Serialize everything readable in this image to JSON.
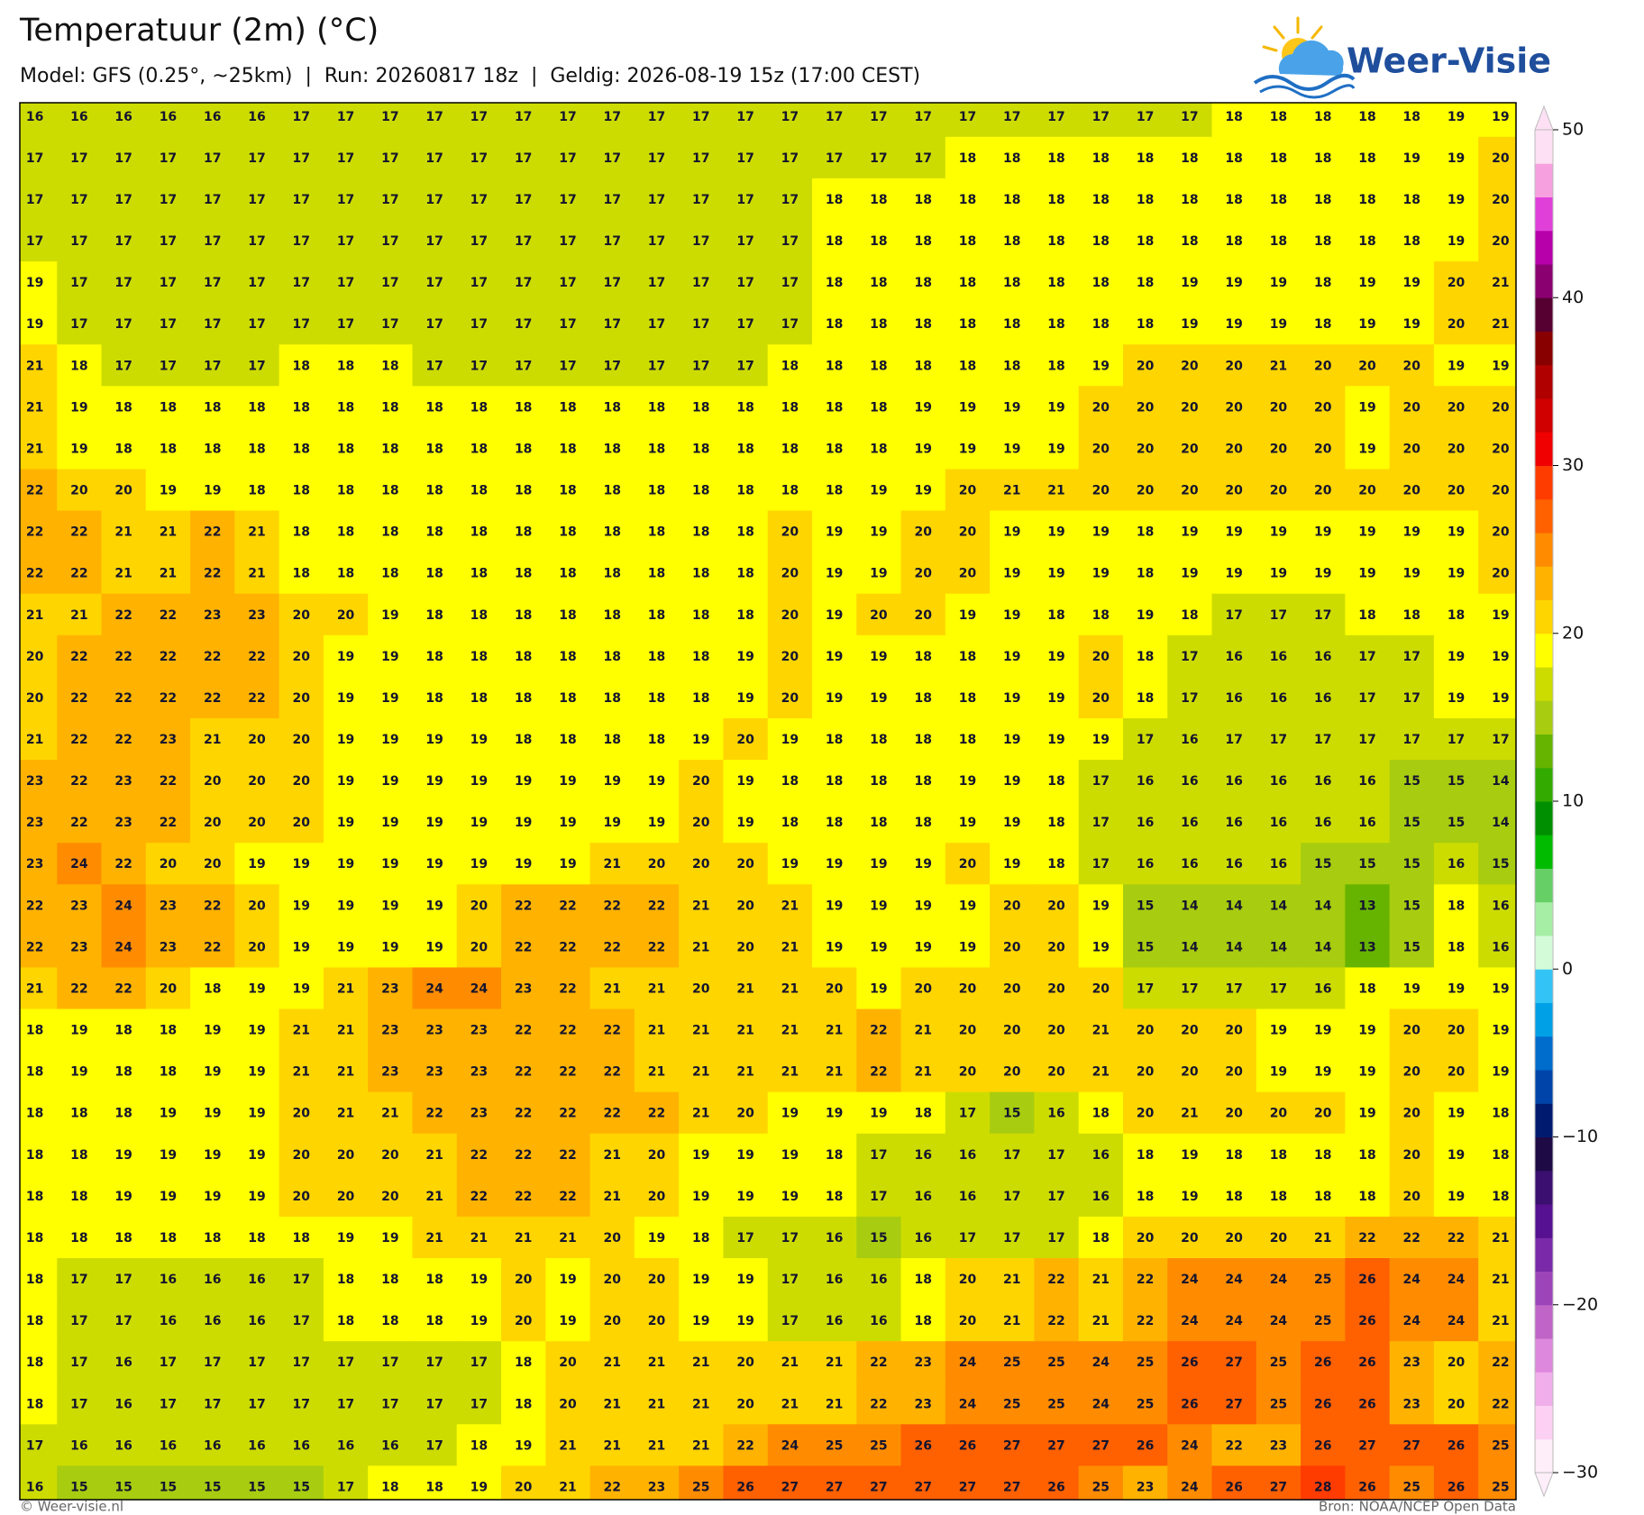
{
  "header": {
    "title": "Temperatuur (2m) (°C)",
    "subtitle": "Model: GFS (0.25°, ~25km)  |  Run: 20260817 18z  |  Geldig: 2026-08-19 15z (17:00 CEST)"
  },
  "logo": {
    "text": "Weer-Visie"
  },
  "map": {
    "grid": [
      [
        16,
        16,
        16,
        16,
        16,
        16,
        17,
        17,
        17,
        17,
        17,
        17,
        17,
        17,
        17,
        17,
        17,
        17,
        17,
        17,
        17,
        17,
        17,
        17,
        17,
        17,
        17,
        18,
        18,
        18,
        18,
        18,
        19,
        19
      ],
      [
        17,
        17,
        17,
        17,
        17,
        17,
        17,
        17,
        17,
        17,
        17,
        17,
        17,
        17,
        17,
        17,
        17,
        17,
        17,
        17,
        17,
        18,
        18,
        18,
        18,
        18,
        18,
        18,
        18,
        18,
        18,
        19,
        19,
        20
      ],
      [
        17,
        17,
        17,
        17,
        17,
        17,
        17,
        17,
        17,
        17,
        17,
        17,
        17,
        17,
        17,
        17,
        17,
        17,
        18,
        18,
        18,
        18,
        18,
        18,
        18,
        18,
        18,
        18,
        18,
        18,
        18,
        18,
        19,
        20
      ],
      [
        17,
        17,
        17,
        17,
        17,
        17,
        17,
        17,
        17,
        17,
        17,
        17,
        17,
        17,
        17,
        17,
        17,
        17,
        18,
        18,
        18,
        18,
        18,
        18,
        18,
        18,
        18,
        18,
        18,
        18,
        18,
        18,
        19,
        20
      ],
      [
        19,
        17,
        17,
        17,
        17,
        17,
        17,
        17,
        17,
        17,
        17,
        17,
        17,
        17,
        17,
        17,
        17,
        17,
        18,
        18,
        18,
        18,
        18,
        18,
        18,
        18,
        19,
        19,
        19,
        18,
        19,
        19,
        20,
        21
      ],
      [
        19,
        17,
        17,
        17,
        17,
        17,
        17,
        17,
        17,
        17,
        17,
        17,
        17,
        17,
        17,
        17,
        17,
        17,
        18,
        18,
        18,
        18,
        18,
        18,
        18,
        18,
        19,
        19,
        19,
        18,
        19,
        19,
        20,
        21
      ],
      [
        21,
        18,
        17,
        17,
        17,
        17,
        18,
        18,
        18,
        17,
        17,
        17,
        17,
        17,
        17,
        17,
        17,
        18,
        18,
        18,
        18,
        18,
        18,
        18,
        19,
        20,
        20,
        20,
        21,
        20,
        20,
        20,
        19,
        19
      ],
      [
        21,
        19,
        18,
        18,
        18,
        18,
        18,
        18,
        18,
        18,
        18,
        18,
        18,
        18,
        18,
        18,
        18,
        18,
        18,
        18,
        19,
        19,
        19,
        19,
        20,
        20,
        20,
        20,
        20,
        20,
        19,
        20,
        20,
        20
      ],
      [
        21,
        19,
        18,
        18,
        18,
        18,
        18,
        18,
        18,
        18,
        18,
        18,
        18,
        18,
        18,
        18,
        18,
        18,
        18,
        18,
        19,
        19,
        19,
        19,
        20,
        20,
        20,
        20,
        20,
        20,
        19,
        20,
        20,
        20
      ],
      [
        22,
        20,
        20,
        19,
        19,
        18,
        18,
        18,
        18,
        18,
        18,
        18,
        18,
        18,
        18,
        18,
        18,
        18,
        18,
        19,
        19,
        20,
        21,
        21,
        20,
        20,
        20,
        20,
        20,
        20,
        20,
        20,
        20,
        20
      ],
      [
        22,
        22,
        21,
        21,
        22,
        21,
        18,
        18,
        18,
        18,
        18,
        18,
        18,
        18,
        18,
        18,
        18,
        20,
        19,
        19,
        20,
        20,
        19,
        19,
        19,
        18,
        19,
        19,
        19,
        19,
        19,
        19,
        19,
        20
      ],
      [
        22,
        22,
        21,
        21,
        22,
        21,
        18,
        18,
        18,
        18,
        18,
        18,
        18,
        18,
        18,
        18,
        18,
        20,
        19,
        19,
        20,
        20,
        19,
        19,
        19,
        18,
        19,
        19,
        19,
        19,
        19,
        19,
        19,
        20
      ],
      [
        21,
        21,
        22,
        22,
        23,
        23,
        20,
        20,
        19,
        18,
        18,
        18,
        18,
        18,
        18,
        18,
        18,
        20,
        19,
        20,
        20,
        19,
        19,
        18,
        18,
        19,
        18,
        17,
        17,
        17,
        18,
        18,
        18,
        19
      ],
      [
        20,
        22,
        22,
        22,
        22,
        22,
        20,
        19,
        19,
        18,
        18,
        18,
        18,
        18,
        18,
        18,
        19,
        20,
        19,
        19,
        18,
        18,
        19,
        19,
        20,
        18,
        17,
        16,
        16,
        16,
        17,
        17,
        19,
        19
      ],
      [
        20,
        22,
        22,
        22,
        22,
        22,
        20,
        19,
        19,
        18,
        18,
        18,
        18,
        18,
        18,
        18,
        19,
        20,
        19,
        19,
        18,
        18,
        19,
        19,
        20,
        18,
        17,
        16,
        16,
        16,
        17,
        17,
        19,
        19
      ],
      [
        21,
        22,
        22,
        23,
        21,
        20,
        20,
        19,
        19,
        19,
        19,
        18,
        18,
        18,
        18,
        19,
        20,
        19,
        18,
        18,
        18,
        18,
        19,
        19,
        19,
        17,
        16,
        17,
        17,
        17,
        17,
        17,
        17,
        17
      ],
      [
        23,
        22,
        23,
        22,
        20,
        20,
        20,
        19,
        19,
        19,
        19,
        19,
        19,
        19,
        19,
        20,
        19,
        18,
        18,
        18,
        18,
        19,
        19,
        18,
        17,
        16,
        16,
        16,
        16,
        16,
        16,
        15,
        15,
        14
      ],
      [
        23,
        22,
        23,
        22,
        20,
        20,
        20,
        19,
        19,
        19,
        19,
        19,
        19,
        19,
        19,
        20,
        19,
        18,
        18,
        18,
        18,
        19,
        19,
        18,
        17,
        16,
        16,
        16,
        16,
        16,
        16,
        15,
        15,
        14
      ],
      [
        23,
        24,
        22,
        20,
        20,
        19,
        19,
        19,
        19,
        19,
        19,
        19,
        19,
        21,
        20,
        20,
        20,
        19,
        19,
        19,
        19,
        20,
        19,
        18,
        17,
        16,
        16,
        16,
        16,
        15,
        15,
        15,
        16,
        15
      ],
      [
        22,
        23,
        24,
        23,
        22,
        20,
        19,
        19,
        19,
        19,
        20,
        22,
        22,
        22,
        22,
        21,
        20,
        21,
        19,
        19,
        19,
        19,
        20,
        20,
        19,
        15,
        14,
        14,
        14,
        14,
        13,
        15,
        18,
        16
      ],
      [
        22,
        23,
        24,
        23,
        22,
        20,
        19,
        19,
        19,
        19,
        20,
        22,
        22,
        22,
        22,
        21,
        20,
        21,
        19,
        19,
        19,
        19,
        20,
        20,
        19,
        15,
        14,
        14,
        14,
        14,
        13,
        15,
        18,
        16
      ],
      [
        21,
        22,
        22,
        20,
        18,
        19,
        19,
        21,
        23,
        24,
        24,
        23,
        22,
        21,
        21,
        20,
        21,
        21,
        20,
        19,
        20,
        20,
        20,
        20,
        20,
        17,
        17,
        17,
        17,
        16,
        18,
        19,
        19,
        19
      ],
      [
        18,
        19,
        18,
        18,
        19,
        19,
        21,
        21,
        23,
        23,
        23,
        22,
        22,
        22,
        21,
        21,
        21,
        21,
        21,
        22,
        21,
        20,
        20,
        20,
        21,
        20,
        20,
        20,
        19,
        19,
        19,
        20,
        20,
        19
      ],
      [
        18,
        19,
        18,
        18,
        19,
        19,
        21,
        21,
        23,
        23,
        23,
        22,
        22,
        22,
        21,
        21,
        21,
        21,
        21,
        22,
        21,
        20,
        20,
        20,
        21,
        20,
        20,
        20,
        19,
        19,
        19,
        20,
        20,
        19
      ],
      [
        18,
        18,
        18,
        19,
        19,
        19,
        20,
        21,
        21,
        22,
        23,
        22,
        22,
        22,
        22,
        21,
        20,
        19,
        19,
        19,
        18,
        17,
        15,
        16,
        18,
        20,
        21,
        20,
        20,
        20,
        19,
        20,
        19,
        18
      ],
      [
        18,
        18,
        19,
        19,
        19,
        19,
        20,
        20,
        20,
        21,
        22,
        22,
        22,
        21,
        20,
        19,
        19,
        19,
        18,
        17,
        16,
        16,
        17,
        17,
        16,
        18,
        19,
        18,
        18,
        18,
        18,
        20,
        19,
        18
      ],
      [
        18,
        18,
        19,
        19,
        19,
        19,
        20,
        20,
        20,
        21,
        22,
        22,
        22,
        21,
        20,
        19,
        19,
        19,
        18,
        17,
        16,
        16,
        17,
        17,
        16,
        18,
        19,
        18,
        18,
        18,
        18,
        20,
        19,
        18
      ],
      [
        18,
        18,
        18,
        18,
        18,
        18,
        18,
        19,
        19,
        21,
        21,
        21,
        21,
        20,
        19,
        18,
        17,
        17,
        16,
        15,
        16,
        17,
        17,
        17,
        18,
        20,
        20,
        20,
        20,
        21,
        22,
        22,
        22,
        21
      ],
      [
        18,
        17,
        17,
        16,
        16,
        16,
        17,
        18,
        18,
        18,
        19,
        20,
        19,
        20,
        20,
        19,
        19,
        17,
        16,
        16,
        18,
        20,
        21,
        22,
        21,
        22,
        24,
        24,
        24,
        25,
        26,
        24,
        24,
        21
      ],
      [
        18,
        17,
        17,
        16,
        16,
        16,
        17,
        18,
        18,
        18,
        19,
        20,
        19,
        20,
        20,
        19,
        19,
        17,
        16,
        16,
        18,
        20,
        21,
        22,
        21,
        22,
        24,
        24,
        24,
        25,
        26,
        24,
        24,
        21
      ],
      [
        18,
        17,
        16,
        17,
        17,
        17,
        17,
        17,
        17,
        17,
        17,
        18,
        20,
        21,
        21,
        21,
        20,
        21,
        21,
        22,
        23,
        24,
        25,
        25,
        24,
        25,
        26,
        27,
        25,
        26,
        26,
        23,
        20,
        22
      ],
      [
        18,
        17,
        16,
        17,
        17,
        17,
        17,
        17,
        17,
        17,
        17,
        18,
        20,
        21,
        21,
        21,
        20,
        21,
        21,
        22,
        23,
        24,
        25,
        25,
        24,
        25,
        26,
        27,
        25,
        26,
        26,
        23,
        20,
        22
      ],
      [
        17,
        16,
        16,
        16,
        16,
        16,
        16,
        16,
        16,
        17,
        18,
        19,
        21,
        21,
        21,
        21,
        22,
        24,
        25,
        25,
        26,
        26,
        27,
        27,
        27,
        26,
        24,
        22,
        23,
        26,
        27,
        27,
        26,
        25
      ],
      [
        16,
        15,
        15,
        15,
        15,
        15,
        15,
        17,
        18,
        18,
        19,
        20,
        21,
        22,
        23,
        25,
        26,
        27,
        27,
        27,
        27,
        27,
        27,
        26,
        25,
        23,
        24,
        26,
        27,
        28,
        26,
        25,
        26,
        25
      ]
    ]
  },
  "colorbar": {
    "lim": [
      -30,
      50
    ],
    "ticks": [
      50,
      40,
      30,
      20,
      10,
      0,
      {
        "value": -10,
        "label": "−10"
      },
      {
        "value": -20,
        "label": "−20"
      },
      {
        "value": -30,
        "label": "−30"
      }
    ],
    "colors": [
      "#fdeefa",
      "#fcd0f3",
      "#f0aeea",
      "#dd88dc",
      "#c065c8",
      "#9c45b8",
      "#7a2aa8",
      "#551190",
      "#3a0f70",
      "#1e0a45",
      "#001a70",
      "#0044aa",
      "#006ccc",
      "#00a0e6",
      "#33c4f5",
      "#d4fbd8",
      "#a6eea6",
      "#66d066",
      "#00bb00",
      "#008f00",
      "#33aa00",
      "#66b400",
      "#a8cc10",
      "#cddc00",
      "#ffff00",
      "#ffd500",
      "#ffb300",
      "#ff8c00",
      "#ff6000",
      "#ff3c00",
      "#f00000",
      "#d00000",
      "#b00000",
      "#880000",
      "#550030",
      "#8a0070",
      "#b800aa",
      "#e040d8",
      "#f7a0e0",
      "#fde0f4"
    ]
  },
  "footer": {
    "left": "© Weer-visie.nl",
    "right": "Bron: NOAA/NCEP Open Data"
  }
}
